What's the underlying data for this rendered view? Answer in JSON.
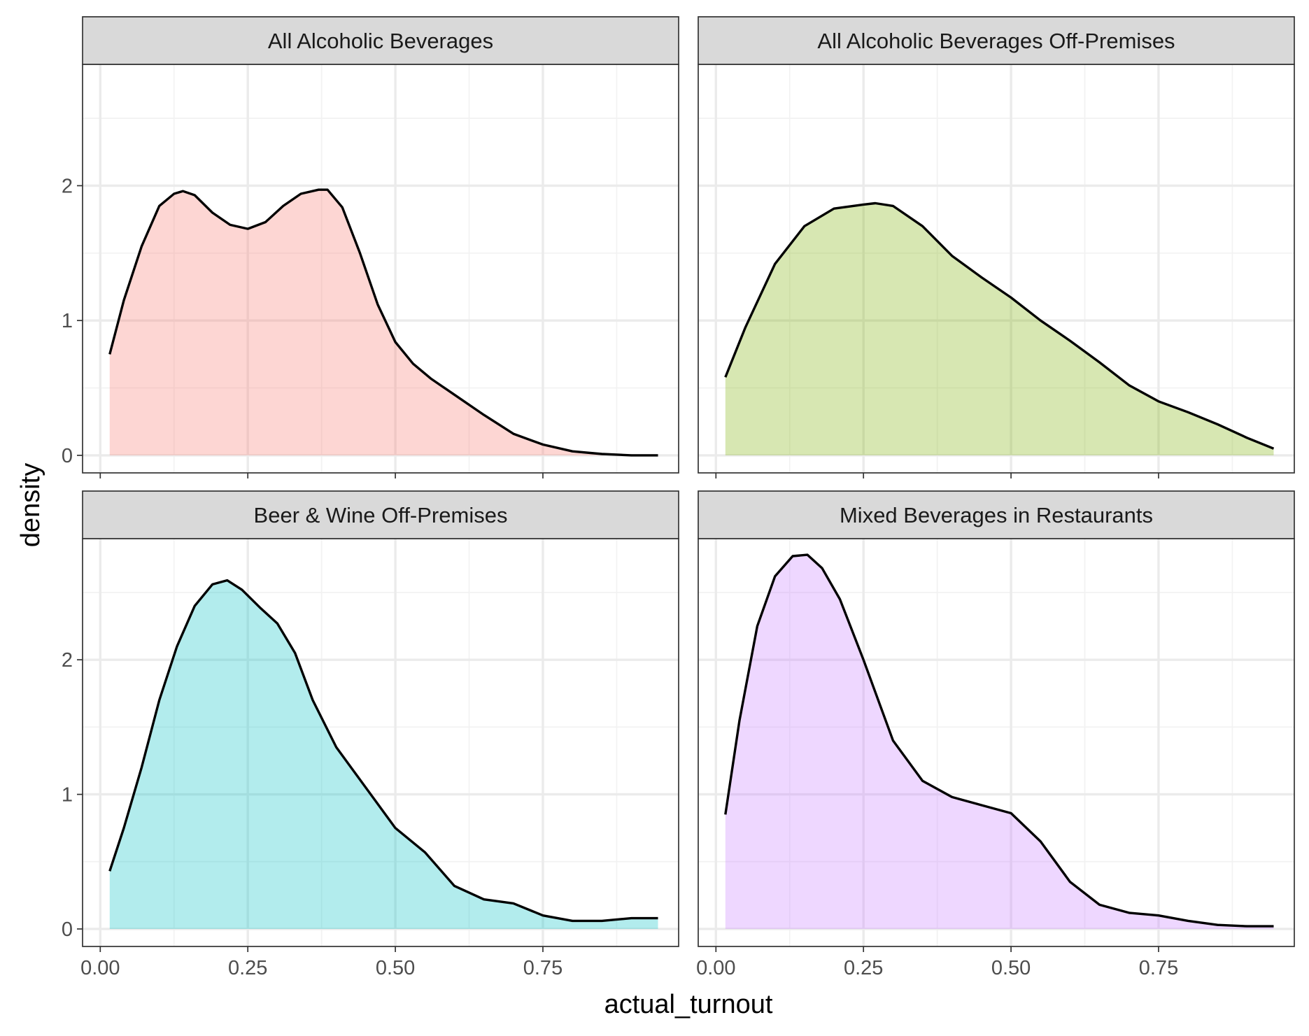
{
  "chart_data": {
    "type": "area",
    "xlabel": "actual_turnout",
    "ylabel": "density",
    "xlim": [
      -0.03,
      0.98
    ],
    "ylim": [
      -0.13,
      2.9
    ],
    "x_ticks": [
      0,
      0.25,
      0.5,
      0.75
    ],
    "x_tick_labels": [
      "0.00",
      "0.25",
      "0.50",
      "0.75"
    ],
    "y_ticks": [
      0,
      1,
      2
    ],
    "y_tick_labels": [
      "0",
      "1",
      "2"
    ],
    "grid": true,
    "facets": [
      {
        "title": "All Alcoholic Beverages",
        "fill": "#F8766D",
        "x": [
          0.016,
          0.04,
          0.07,
          0.1,
          0.125,
          0.14,
          0.16,
          0.19,
          0.22,
          0.25,
          0.28,
          0.31,
          0.34,
          0.37,
          0.385,
          0.41,
          0.44,
          0.47,
          0.5,
          0.53,
          0.56,
          0.6,
          0.65,
          0.7,
          0.75,
          0.8,
          0.85,
          0.9,
          0.945
        ],
        "y": [
          0.75,
          1.15,
          1.55,
          1.85,
          1.94,
          1.96,
          1.93,
          1.8,
          1.71,
          1.68,
          1.73,
          1.85,
          1.94,
          1.97,
          1.97,
          1.84,
          1.5,
          1.12,
          0.84,
          0.68,
          0.57,
          0.45,
          0.3,
          0.16,
          0.08,
          0.03,
          0.01,
          0.0,
          0.0
        ]
      },
      {
        "title": "All Alcoholic Beverages Off-Premises",
        "fill": "#7CAE00",
        "x": [
          0.016,
          0.05,
          0.1,
          0.15,
          0.2,
          0.25,
          0.27,
          0.3,
          0.35,
          0.4,
          0.45,
          0.5,
          0.55,
          0.6,
          0.65,
          0.7,
          0.75,
          0.8,
          0.85,
          0.9,
          0.945
        ],
        "y": [
          0.58,
          0.95,
          1.42,
          1.7,
          1.83,
          1.86,
          1.87,
          1.85,
          1.7,
          1.48,
          1.32,
          1.17,
          1.0,
          0.85,
          0.69,
          0.52,
          0.4,
          0.32,
          0.23,
          0.13,
          0.05
        ]
      },
      {
        "title": "Beer & Wine Off-Premises",
        "fill": "#00BFC4",
        "x": [
          0.016,
          0.04,
          0.07,
          0.1,
          0.13,
          0.16,
          0.19,
          0.215,
          0.24,
          0.27,
          0.3,
          0.33,
          0.36,
          0.4,
          0.45,
          0.5,
          0.55,
          0.6,
          0.65,
          0.7,
          0.75,
          0.8,
          0.85,
          0.9,
          0.945
        ],
        "y": [
          0.43,
          0.75,
          1.2,
          1.7,
          2.1,
          2.4,
          2.56,
          2.59,
          2.52,
          2.39,
          2.27,
          2.05,
          1.7,
          1.35,
          1.05,
          0.75,
          0.57,
          0.32,
          0.22,
          0.19,
          0.1,
          0.06,
          0.06,
          0.08,
          0.08
        ]
      },
      {
        "title": "Mixed Beverages in Restaurants",
        "fill": "#C77CFF",
        "x": [
          0.016,
          0.04,
          0.07,
          0.1,
          0.13,
          0.155,
          0.18,
          0.21,
          0.25,
          0.3,
          0.35,
          0.4,
          0.45,
          0.5,
          0.55,
          0.6,
          0.65,
          0.7,
          0.75,
          0.8,
          0.85,
          0.9,
          0.945
        ],
        "y": [
          0.85,
          1.55,
          2.25,
          2.62,
          2.77,
          2.78,
          2.68,
          2.45,
          2.0,
          1.4,
          1.1,
          0.98,
          0.92,
          0.86,
          0.65,
          0.35,
          0.18,
          0.12,
          0.1,
          0.06,
          0.03,
          0.02,
          0.02
        ]
      }
    ]
  }
}
